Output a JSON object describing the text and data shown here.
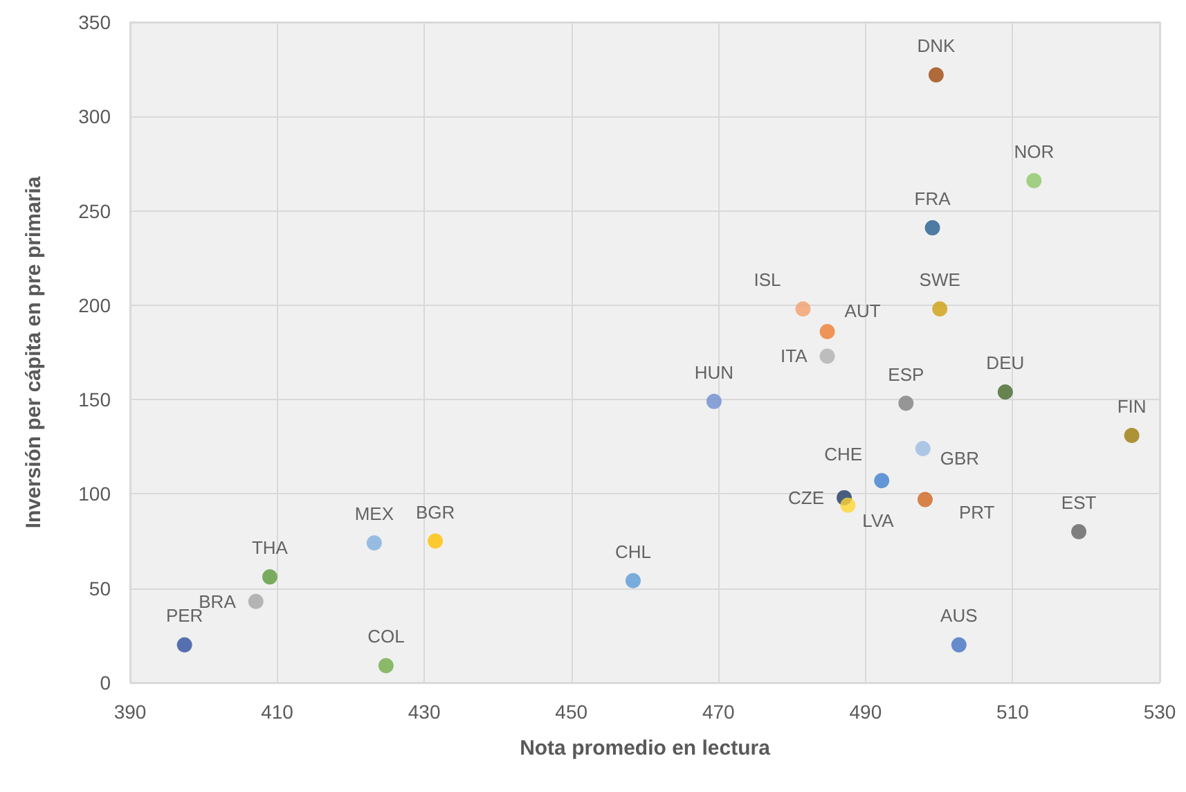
{
  "chart_data": {
    "type": "scatter",
    "xlabel": "Nota promedio en lectura",
    "ylabel": "Inversión per cápita en pre primaria",
    "xlim": [
      390,
      530
    ],
    "xticks": [
      390,
      410,
      430,
      450,
      470,
      490,
      510,
      530
    ],
    "ylim": [
      0,
      350
    ],
    "yticks": [
      0,
      50,
      100,
      150,
      200,
      250,
      300,
      350
    ],
    "grid": true,
    "legend": false,
    "marker": "circle",
    "series": [
      {
        "name": "PER",
        "color": "#2f4f9f",
        "x": [
          397.4
        ],
        "values": [
          20
        ]
      },
      {
        "name": "BRA",
        "color": "#a5a5a5",
        "x": [
          407.1
        ],
        "values": [
          43
        ]
      },
      {
        "name": "THA",
        "color": "#5b9a3a",
        "x": [
          409
        ],
        "values": [
          56
        ]
      },
      {
        "name": "COL",
        "color": "#70ad47",
        "x": [
          424.8
        ],
        "values": [
          9
        ]
      },
      {
        "name": "MEX",
        "color": "#7fafdf",
        "x": [
          423.2
        ],
        "values": [
          74
        ]
      },
      {
        "name": "BGR",
        "color": "#ffc000",
        "x": [
          431.5
        ],
        "values": [
          75
        ]
      },
      {
        "name": "CHL",
        "color": "#5b9bd5",
        "x": [
          458.4
        ],
        "values": [
          54
        ]
      },
      {
        "name": "HUN",
        "color": "#6f8fcf",
        "x": [
          469.4
        ],
        "values": [
          149
        ]
      },
      {
        "name": "ISL",
        "color": "#f4a06b",
        "x": [
          481.5
        ],
        "values": [
          198
        ]
      },
      {
        "name": "AUT",
        "color": "#ed7d31",
        "x": [
          484.8
        ],
        "values": [
          186
        ]
      },
      {
        "name": "ITA",
        "color": "#b0b0b0",
        "x": [
          484.8
        ],
        "values": [
          173
        ]
      },
      {
        "name": "ESP",
        "color": "#808080",
        "x": [
          495.5
        ],
        "values": [
          148
        ]
      },
      {
        "name": "GBR",
        "color": "#9dbbe3",
        "x": [
          497.8
        ],
        "values": [
          124
        ]
      },
      {
        "name": "CHE",
        "color": "#3f7fcf",
        "x": [
          492.2
        ],
        "values": [
          107
        ]
      },
      {
        "name": "CZE",
        "color": "#1f3864",
        "x": [
          487.1
        ],
        "values": [
          98
        ]
      },
      {
        "name": "LVA",
        "color": "#ffd633",
        "x": [
          487.6
        ],
        "values": [
          94
        ]
      },
      {
        "name": "PRT",
        "color": "#d0661f",
        "x": [
          498.1
        ],
        "values": [
          97
        ]
      },
      {
        "name": "AUS",
        "color": "#4472c4",
        "x": [
          502.7
        ],
        "values": [
          20
        ]
      },
      {
        "name": "DNK",
        "color": "#9e480e",
        "x": [
          499.6
        ],
        "values": [
          322
        ]
      },
      {
        "name": "FRA",
        "color": "#255e91",
        "x": [
          499.1
        ],
        "values": [
          241
        ]
      },
      {
        "name": "NOR",
        "color": "#8fc866",
        "x": [
          512.9
        ],
        "values": [
          266
        ]
      },
      {
        "name": "SWE",
        "color": "#d0a010",
        "x": [
          500.1
        ],
        "values": [
          198
        ]
      },
      {
        "name": "DEU",
        "color": "#43682b",
        "x": [
          509
        ],
        "values": [
          154
        ]
      },
      {
        "name": "FIN",
        "color": "#9c7a0a",
        "x": [
          526.2
        ],
        "values": [
          131
        ]
      },
      {
        "name": "EST",
        "color": "#636363",
        "x": [
          519
        ],
        "values": [
          80
        ]
      }
    ]
  }
}
